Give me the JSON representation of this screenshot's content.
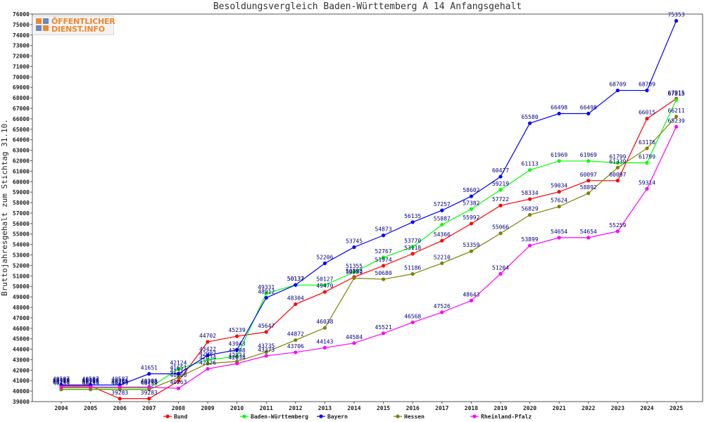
{
  "logo": {
    "line1": "ÖFFENTLICHER",
    "line2": "DIENST.INFO"
  },
  "chart_data": {
    "type": "line",
    "title": "Besoldungsvergleich Baden-Württemberg A 14 Anfangsgehalt",
    "ylabel": "Bruttojahresgehalt zum Stichtag 31.10.",
    "xlabel": "",
    "categories": [
      "2004",
      "2005",
      "2006",
      "2007",
      "2008",
      "2009",
      "2010",
      "2011",
      "2012",
      "2013",
      "2014",
      "2015",
      "2016",
      "2017",
      "2018",
      "2019",
      "2020",
      "2021",
      "2022",
      "2023",
      "2024",
      "2025"
    ],
    "ylim": [
      39000,
      76000
    ],
    "ytick_step": 1000,
    "grid": false,
    "legend_position": "bottom",
    "series": [
      {
        "name": "Bund",
        "color": "#ff0000",
        "values": [
          40490,
          40490,
          39283,
          39283,
          40960,
          44702,
          45239,
          45647,
          48304,
          49470,
          50893,
          51974,
          53118,
          54366,
          55992,
          57722,
          58334,
          59034,
          60097,
          60097,
          66015,
          67915
        ]
      },
      {
        "name": "Baden-Württemberg",
        "color": "#00ff00",
        "values": [
          40298,
          40298,
          40298,
          40298,
          42124,
          42987,
          43298,
          49331,
          50132,
          50127,
          51355,
          52767,
          53770,
          55887,
          57382,
          59219,
          61113,
          61969,
          61969,
          61799,
          61799,
          67815
        ]
      },
      {
        "name": "Bayern",
        "color": "#0000ff",
        "values": [
          40587,
          40587,
          40587,
          41651,
          41651,
          43422,
          43943,
          48912,
          50137,
          52206,
          53745,
          54873,
          56135,
          57257,
          58602,
          60477,
          65580,
          66498,
          66498,
          68709,
          68709,
          75353
        ]
      },
      {
        "name": "Hessen",
        "color": "#808000",
        "values": [
          40159,
          40159,
          40159,
          40159,
          41313,
          42634,
          42834,
          43735,
          44872,
          46038,
          50789,
          50680,
          51186,
          52210,
          53359,
          55066,
          56829,
          57624,
          58892,
          61339,
          63176,
          66211
        ]
      },
      {
        "name": "Rheinland-Pfalz",
        "color": "#ff00ff",
        "values": [
          40385,
          40385,
          40385,
          40385,
          40263,
          42126,
          42634,
          43373,
          43706,
          44143,
          44584,
          45521,
          46568,
          47526,
          48643,
          51204,
          53899,
          54654,
          54654,
          55259,
          59314,
          65239
        ]
      }
    ]
  }
}
